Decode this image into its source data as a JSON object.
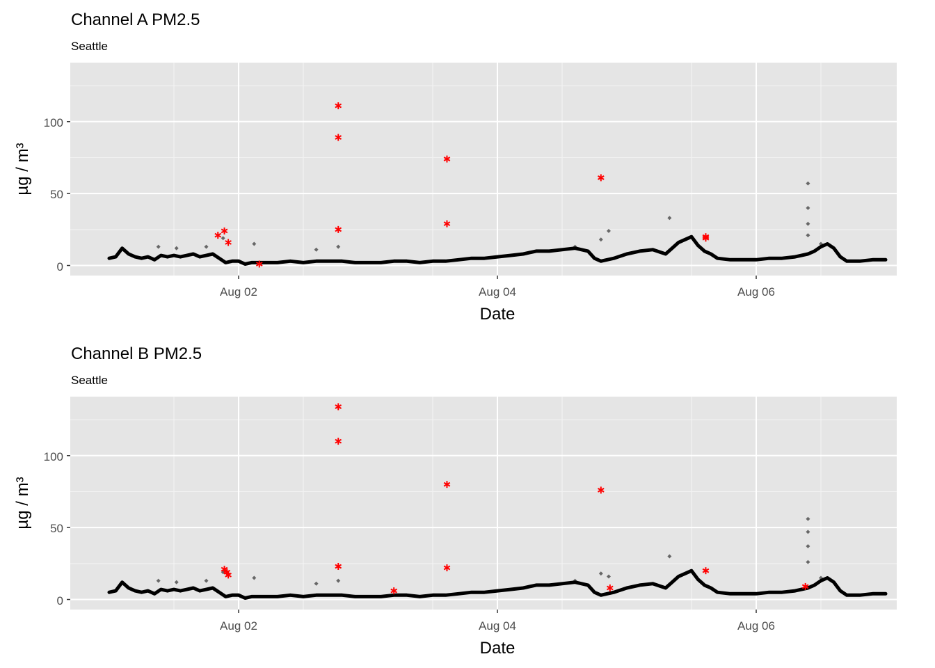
{
  "chart_data": [
    {
      "type": "scatter",
      "title": "Channel A PM2.5",
      "subtitle": "Seattle",
      "xlabel": "Date",
      "ylabel": "µg / m³",
      "x_ticks": [
        "Aug 02",
        "Aug 04",
        "Aug 06"
      ],
      "y_ticks": [
        0,
        50,
        100
      ],
      "xlim": [
        1.0,
        7.0
      ],
      "ylim": [
        -7,
        141
      ],
      "grid": true,
      "background": "#E5E5E5",
      "colors": {
        "measurement": "#000000",
        "outlier": "#FF0000"
      },
      "trace": {
        "x": [
          1.0,
          1.05,
          1.1,
          1.15,
          1.2,
          1.25,
          1.3,
          1.35,
          1.4,
          1.45,
          1.5,
          1.55,
          1.6,
          1.65,
          1.7,
          1.75,
          1.8,
          1.85,
          1.9,
          1.95,
          2.0,
          2.05,
          2.1,
          2.15,
          2.2,
          2.3,
          2.4,
          2.5,
          2.6,
          2.7,
          2.8,
          2.9,
          3.0,
          3.1,
          3.2,
          3.3,
          3.4,
          3.5,
          3.6,
          3.7,
          3.8,
          3.9,
          4.0,
          4.1,
          4.2,
          4.3,
          4.4,
          4.5,
          4.6,
          4.7,
          4.75,
          4.8,
          4.9,
          5.0,
          5.1,
          5.2,
          5.3,
          5.35,
          5.4,
          5.45,
          5.5,
          5.55,
          5.6,
          5.65,
          5.7,
          5.8,
          5.9,
          6.0,
          6.1,
          6.2,
          6.3,
          6.4,
          6.45,
          6.5,
          6.55,
          6.6,
          6.65,
          6.7,
          6.8,
          6.9,
          7.0
        ],
        "y": [
          5,
          6,
          12,
          8,
          6,
          5,
          6,
          4,
          7,
          6,
          7,
          6,
          7,
          8,
          6,
          7,
          8,
          5,
          2,
          3,
          3,
          1,
          2,
          2,
          2,
          2,
          3,
          2,
          3,
          3,
          3,
          2,
          2,
          2,
          3,
          3,
          2,
          3,
          3,
          4,
          5,
          5,
          6,
          7,
          8,
          10,
          10,
          11,
          12,
          10,
          5,
          3,
          5,
          8,
          10,
          11,
          8,
          12,
          16,
          18,
          20,
          14,
          10,
          8,
          5,
          4,
          4,
          4,
          5,
          5,
          6,
          8,
          10,
          13,
          15,
          12,
          6,
          3,
          3,
          4,
          4
        ]
      },
      "spikes": [
        {
          "x": 1.38,
          "y": 13
        },
        {
          "x": 1.52,
          "y": 12
        },
        {
          "x": 1.75,
          "y": 13
        },
        {
          "x": 1.88,
          "y": 19
        },
        {
          "x": 2.12,
          "y": 15
        },
        {
          "x": 2.6,
          "y": 11
        },
        {
          "x": 2.77,
          "y": 13
        },
        {
          "x": 4.6,
          "y": 13
        },
        {
          "x": 4.8,
          "y": 18
        },
        {
          "x": 4.86,
          "y": 24
        },
        {
          "x": 5.33,
          "y": 33
        },
        {
          "x": 6.4,
          "y": 57
        },
        {
          "x": 6.4,
          "y": 40
        },
        {
          "x": 6.4,
          "y": 29
        },
        {
          "x": 6.4,
          "y": 21
        },
        {
          "x": 6.5,
          "y": 15
        }
      ],
      "outliers": [
        {
          "x": 1.84,
          "y": 21
        },
        {
          "x": 1.89,
          "y": 24
        },
        {
          "x": 1.92,
          "y": 16
        },
        {
          "x": 2.16,
          "y": 1
        },
        {
          "x": 2.77,
          "y": 111
        },
        {
          "x": 2.77,
          "y": 89
        },
        {
          "x": 2.77,
          "y": 25
        },
        {
          "x": 3.61,
          "y": 74
        },
        {
          "x": 3.61,
          "y": 29
        },
        {
          "x": 4.8,
          "y": 61
        },
        {
          "x": 5.61,
          "y": 20
        },
        {
          "x": 5.61,
          "y": 19
        }
      ]
    },
    {
      "type": "scatter",
      "title": "Channel B PM2.5",
      "subtitle": "Seattle",
      "xlabel": "Date",
      "ylabel": "µg / m³",
      "x_ticks": [
        "Aug 02",
        "Aug 04",
        "Aug 06"
      ],
      "y_ticks": [
        0,
        50,
        100
      ],
      "xlim": [
        1.0,
        7.0
      ],
      "ylim": [
        -7,
        141
      ],
      "grid": true,
      "background": "#E5E5E5",
      "colors": {
        "measurement": "#000000",
        "outlier": "#FF0000"
      },
      "trace": {
        "x": [
          1.0,
          1.05,
          1.1,
          1.15,
          1.2,
          1.25,
          1.3,
          1.35,
          1.4,
          1.45,
          1.5,
          1.55,
          1.6,
          1.65,
          1.7,
          1.75,
          1.8,
          1.85,
          1.9,
          1.95,
          2.0,
          2.05,
          2.1,
          2.15,
          2.2,
          2.3,
          2.4,
          2.5,
          2.6,
          2.7,
          2.8,
          2.9,
          3.0,
          3.1,
          3.2,
          3.3,
          3.4,
          3.5,
          3.6,
          3.7,
          3.8,
          3.9,
          4.0,
          4.1,
          4.2,
          4.3,
          4.4,
          4.5,
          4.6,
          4.7,
          4.75,
          4.8,
          4.9,
          5.0,
          5.1,
          5.2,
          5.3,
          5.35,
          5.4,
          5.45,
          5.5,
          5.55,
          5.6,
          5.65,
          5.7,
          5.8,
          5.9,
          6.0,
          6.1,
          6.2,
          6.3,
          6.4,
          6.45,
          6.5,
          6.55,
          6.6,
          6.65,
          6.7,
          6.8,
          6.9,
          7.0
        ],
        "y": [
          5,
          6,
          12,
          8,
          6,
          5,
          6,
          4,
          7,
          6,
          7,
          6,
          7,
          8,
          6,
          7,
          8,
          5,
          2,
          3,
          3,
          1,
          2,
          2,
          2,
          2,
          3,
          2,
          3,
          3,
          3,
          2,
          2,
          2,
          3,
          3,
          2,
          3,
          3,
          4,
          5,
          5,
          6,
          7,
          8,
          10,
          10,
          11,
          12,
          10,
          5,
          3,
          5,
          8,
          10,
          11,
          8,
          12,
          16,
          18,
          20,
          14,
          10,
          8,
          5,
          4,
          4,
          4,
          5,
          5,
          6,
          8,
          10,
          13,
          15,
          12,
          6,
          3,
          3,
          4,
          4
        ]
      },
      "spikes": [
        {
          "x": 1.38,
          "y": 13
        },
        {
          "x": 1.52,
          "y": 12
        },
        {
          "x": 1.75,
          "y": 13
        },
        {
          "x": 1.88,
          "y": 19
        },
        {
          "x": 2.12,
          "y": 15
        },
        {
          "x": 2.6,
          "y": 11
        },
        {
          "x": 2.77,
          "y": 13
        },
        {
          "x": 4.6,
          "y": 13
        },
        {
          "x": 4.8,
          "y": 18
        },
        {
          "x": 4.86,
          "y": 16
        },
        {
          "x": 5.33,
          "y": 30
        },
        {
          "x": 6.4,
          "y": 56
        },
        {
          "x": 6.4,
          "y": 47
        },
        {
          "x": 6.4,
          "y": 37
        },
        {
          "x": 6.4,
          "y": 26
        },
        {
          "x": 6.5,
          "y": 15
        }
      ],
      "outliers": [
        {
          "x": 1.89,
          "y": 21
        },
        {
          "x": 1.91,
          "y": 19
        },
        {
          "x": 1.92,
          "y": 17
        },
        {
          "x": 2.77,
          "y": 134
        },
        {
          "x": 2.77,
          "y": 110
        },
        {
          "x": 2.77,
          "y": 23
        },
        {
          "x": 3.2,
          "y": 6
        },
        {
          "x": 3.61,
          "y": 80
        },
        {
          "x": 3.61,
          "y": 22
        },
        {
          "x": 4.8,
          "y": 76
        },
        {
          "x": 4.87,
          "y": 8
        },
        {
          "x": 5.61,
          "y": 20
        },
        {
          "x": 6.38,
          "y": 9
        }
      ]
    }
  ]
}
